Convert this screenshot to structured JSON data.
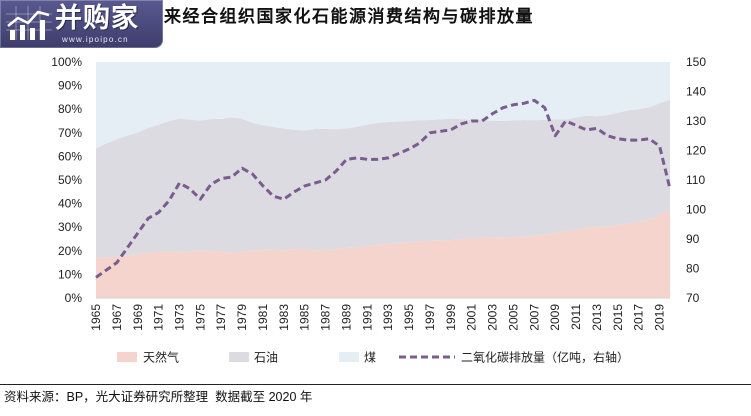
{
  "logo": {
    "name": "并购家",
    "url": "www.ipoipo.cn"
  },
  "title": "来经合组织国家化石能源消费结构与碳排放量",
  "source": "资料来源：BP，光大证券研究所整理  数据截至 2020 年",
  "chart_data": {
    "type": "area",
    "stacked": true,
    "x": [
      1965,
      1966,
      1967,
      1968,
      1969,
      1970,
      1971,
      1972,
      1973,
      1974,
      1975,
      1976,
      1977,
      1978,
      1979,
      1980,
      1981,
      1982,
      1983,
      1984,
      1985,
      1986,
      1987,
      1988,
      1989,
      1990,
      1991,
      1992,
      1993,
      1994,
      1995,
      1996,
      1997,
      1998,
      1999,
      2000,
      2001,
      2002,
      2003,
      2004,
      2005,
      2006,
      2007,
      2008,
      2009,
      2010,
      2011,
      2012,
      2013,
      2014,
      2015,
      2016,
      2017,
      2018,
      2019,
      2020
    ],
    "x_ticks": [
      "1965",
      "1967",
      "1969",
      "1971",
      "1973",
      "1975",
      "1977",
      "1979",
      "1981",
      "1983",
      "1985",
      "1987",
      "1989",
      "1991",
      "1993",
      "1995",
      "1997",
      "1999",
      "2001",
      "2003",
      "2005",
      "2007",
      "2009",
      "2011",
      "2013",
      "2015",
      "2017",
      "2019"
    ],
    "y_left": {
      "min": 0,
      "max": 100,
      "ticks": [
        "0%",
        "10%",
        "20%",
        "30%",
        "40%",
        "50%",
        "60%",
        "70%",
        "80%",
        "90%",
        "100%"
      ]
    },
    "y_right": {
      "min": 70,
      "max": 150,
      "ticks": [
        "70",
        "80",
        "90",
        "100",
        "110",
        "120",
        "130",
        "140",
        "150"
      ]
    },
    "series": [
      {
        "name": "天然气",
        "type": "area",
        "axis": "left",
        "color": "#f4d4cd",
        "values": [
          17.0,
          17.2,
          17.5,
          18.0,
          18.6,
          19.2,
          19.7,
          19.8,
          19.5,
          19.8,
          20.2,
          19.9,
          19.6,
          19.4,
          19.6,
          20.1,
          20.4,
          20.5,
          20.2,
          20.7,
          20.8,
          20.2,
          20.4,
          20.7,
          21.2,
          21.5,
          22.0,
          22.5,
          23.2,
          23.4,
          23.8,
          24.0,
          24.2,
          24.3,
          24.5,
          25.0,
          25.3,
          25.5,
          25.8,
          25.7,
          25.8,
          25.9,
          26.3,
          27.0,
          27.6,
          28.4,
          28.9,
          29.8,
          30.1,
          30.4,
          30.9,
          31.6,
          32.2,
          33.3,
          35.0,
          37.5
        ]
      },
      {
        "name": "石油",
        "type": "area",
        "axis": "left",
        "color": "#dcdbe1",
        "values": [
          46.5,
          48.3,
          49.8,
          50.8,
          51.6,
          52.8,
          53.8,
          55.2,
          56.5,
          55.8,
          55.0,
          55.9,
          56.3,
          57.1,
          56.4,
          54.1,
          52.8,
          52.0,
          51.6,
          50.6,
          50.2,
          51.4,
          51.2,
          50.8,
          50.7,
          51.0,
          51.5,
          51.7,
          51.4,
          51.4,
          51.2,
          51.3,
          51.2,
          51.4,
          51.5,
          50.8,
          50.2,
          49.9,
          49.2,
          49.3,
          49.4,
          49.5,
          49.0,
          48.5,
          48.2,
          47.2,
          47.6,
          47.5,
          46.9,
          47.1,
          47.6,
          47.9,
          47.8,
          47.5,
          47.5,
          46.5
        ]
      },
      {
        "name": "煤",
        "type": "area",
        "axis": "left",
        "color": "#e4eef4",
        "values": [
          36.5,
          34.5,
          32.7,
          31.2,
          29.8,
          28.0,
          26.5,
          25.0,
          24.0,
          24.4,
          24.8,
          24.2,
          24.1,
          23.5,
          24.0,
          25.8,
          26.8,
          27.5,
          28.2,
          28.7,
          29.0,
          28.4,
          28.4,
          28.5,
          28.1,
          27.5,
          26.5,
          25.8,
          25.4,
          25.2,
          25.0,
          24.7,
          24.6,
          24.3,
          24.0,
          24.2,
          24.5,
          24.6,
          25.0,
          25.0,
          24.8,
          24.6,
          24.7,
          24.5,
          24.2,
          24.4,
          23.5,
          22.7,
          23.0,
          22.5,
          21.5,
          20.5,
          20.0,
          19.2,
          17.5,
          16.0
        ]
      },
      {
        "name": "二氧化碳排放量（亿吨，右轴）",
        "type": "line",
        "line_style": "dashed",
        "axis": "right",
        "color": "#7a5c8e",
        "values": [
          77,
          79.5,
          82,
          87,
          92,
          97,
          99,
          103,
          109,
          107,
          103.5,
          108.5,
          110.5,
          111,
          114,
          112,
          108,
          104.5,
          103.5,
          106,
          108,
          109,
          110,
          113,
          117,
          117.5,
          117,
          117,
          117.5,
          119,
          120.5,
          122.5,
          126,
          126.5,
          127,
          129,
          130,
          130,
          132.5,
          134.5,
          135.5,
          136,
          137,
          134.5,
          125,
          130,
          128.5,
          127,
          127.5,
          125,
          124,
          123.5,
          123.5,
          124,
          121.5,
          107
        ]
      }
    ],
    "grid": false,
    "legend_position": "bottom"
  }
}
